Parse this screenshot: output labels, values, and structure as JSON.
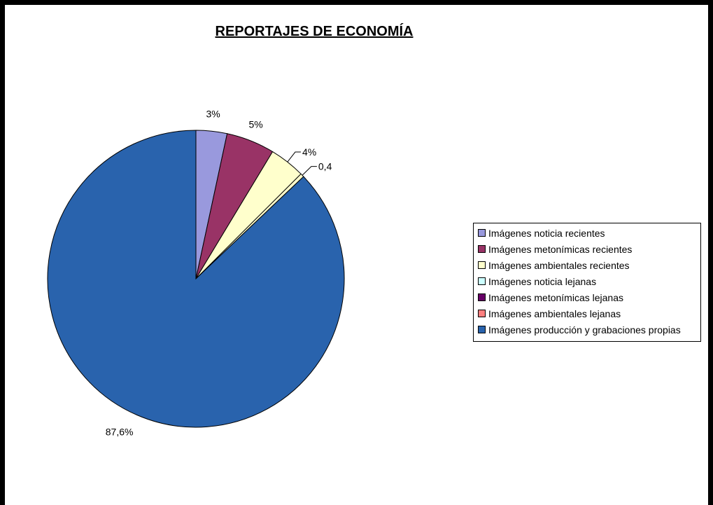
{
  "chart_data": {
    "type": "pie",
    "title": "REPORTAJES DE ECONOMÍA",
    "legend_position": "right",
    "slices": [
      {
        "label": "Imágenes noticia recientes",
        "value": 3.4,
        "data_label": "3%",
        "color": "#9999dd"
      },
      {
        "label": "Imágenes metonímicas recientes",
        "value": 5.3,
        "data_label": "5%",
        "color": "#993366"
      },
      {
        "label": "Imágenes ambientales recientes",
        "value": 3.9,
        "data_label": "4%",
        "color": "#ffffcc"
      },
      {
        "label": "Imágenes noticia lejanas",
        "value": 0.0,
        "data_label": "",
        "color": "#ccffff"
      },
      {
        "label": "Imágenes metonímicas lejanas",
        "value": 0.0,
        "data_label": "",
        "color": "#660066"
      },
      {
        "label": "Imágenes ambientales lejanas",
        "value": 0.0,
        "data_label": "",
        "color": "#ff8080"
      },
      {
        "label": "Imágenes producción y grabaciones propias",
        "value": 87.6,
        "data_label": "87,6%",
        "color": "#2963ad"
      }
    ],
    "extra_labels": [
      {
        "text": "0,4",
        "value": 0.4
      }
    ]
  }
}
